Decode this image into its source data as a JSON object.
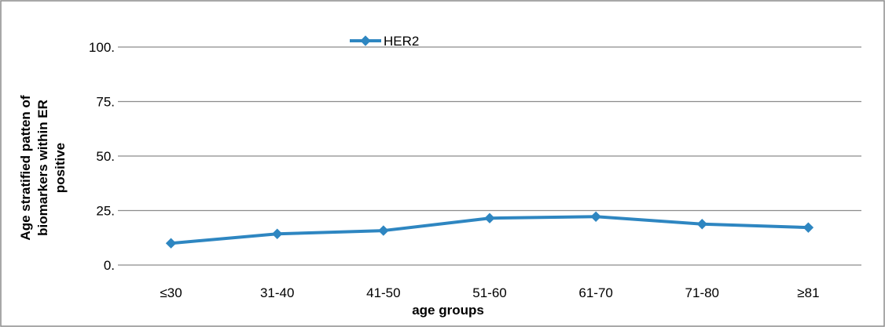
{
  "chart_data": {
    "type": "line",
    "title": "",
    "xlabel": "age groups",
    "ylabel": "Age stratified patten of biomarkers within ER positive",
    "ylabel_lines": [
      "Age stratified patten of",
      "biomarkers within ER",
      "positive"
    ],
    "categories": [
      "≤30",
      "31-40",
      "41-50",
      "51-60",
      "61-70",
      "71-80",
      "≥81"
    ],
    "yticks": [
      0,
      25,
      50,
      75,
      100
    ],
    "ytick_labels": [
      "0.",
      "25.",
      "50.",
      "75.",
      "100."
    ],
    "ylim": [
      0,
      100
    ],
    "grid": true,
    "legend_position": "top-center",
    "series": [
      {
        "name": "HER2",
        "color": "#2E86C1",
        "marker": "diamond",
        "values": [
          10,
          14.3,
          15.8,
          21.5,
          22.2,
          18.8,
          17.2
        ]
      }
    ]
  }
}
